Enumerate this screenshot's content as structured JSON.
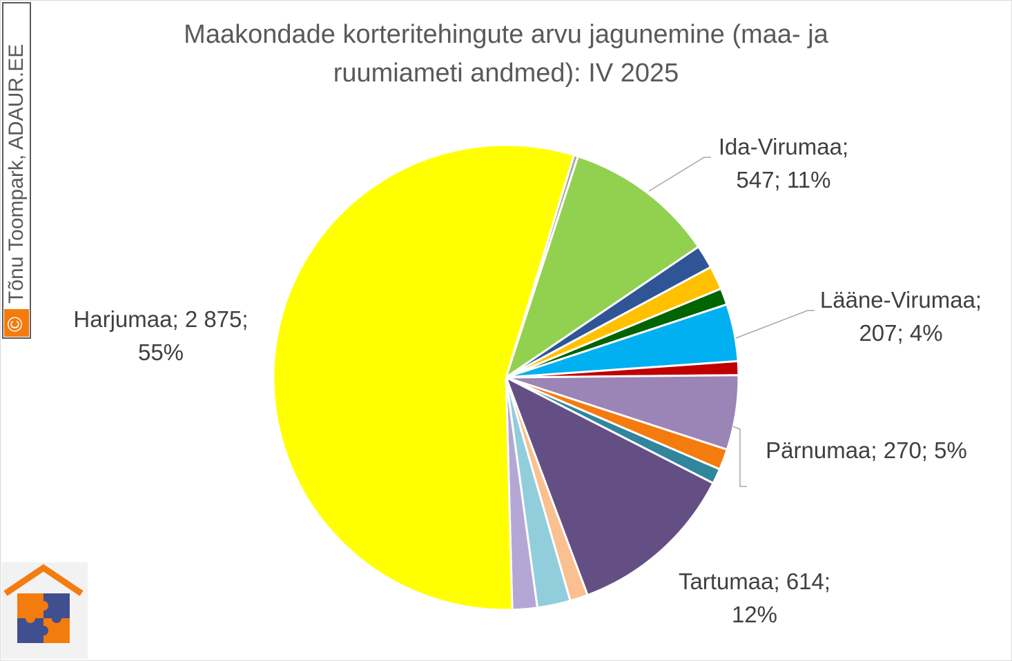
{
  "chart_data": {
    "type": "pie",
    "title": [
      "Maakondade korteritehingute arvu jagunemine (maa- ja",
      "ruumiameti andmed): IV 2025"
    ],
    "watermark_symbol": "©",
    "watermark": "Tõnu Toompark, ADAUR.EE",
    "values": [
      15,
      547,
      85,
      85,
      60,
      207,
      50,
      270,
      75,
      55,
      614,
      65,
      120,
      90,
      2875
    ],
    "value_labels": [
      null,
      [
        "Ida-Virumaa;",
        "547; 11%"
      ],
      null,
      null,
      null,
      [
        "Lääne-Virumaa;",
        "207; 4%"
      ],
      null,
      [
        "Pärnumaa; 270; 5%"
      ],
      null,
      null,
      [
        "Tartumaa; 614;",
        "12%"
      ],
      null,
      null,
      null,
      [
        "Harjumaa; 2 875;",
        "55%"
      ]
    ],
    "colors": [
      "#a6a6a6",
      "#92d050",
      "#2f5597",
      "#ffc000",
      "#006400",
      "#00b0f0",
      "#c00000",
      "#9b84b6",
      "#f47b0e",
      "#31859c",
      "#644f84",
      "#fac090",
      "#92cddc",
      "#b4a7d6",
      "#ffff00"
    ]
  }
}
